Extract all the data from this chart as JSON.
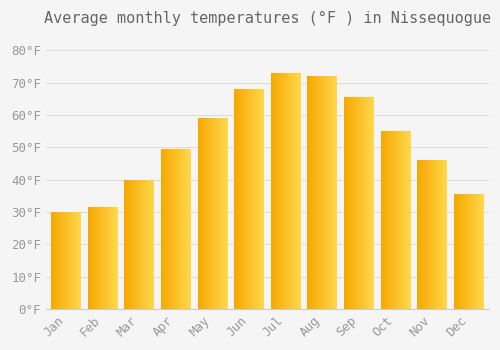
{
  "title": "Average monthly temperatures (°F ) in Nissequogue",
  "months": [
    "Jan",
    "Feb",
    "Mar",
    "Apr",
    "May",
    "Jun",
    "Jul",
    "Aug",
    "Sep",
    "Oct",
    "Nov",
    "Dec"
  ],
  "values": [
    30,
    31.5,
    40,
    49.5,
    59,
    68,
    73,
    72,
    65.5,
    55,
    46,
    35.5
  ],
  "bar_color_left": "#F5A800",
  "bar_color_right": "#FFD84D",
  "background_color": "#F5F5F5",
  "grid_color": "#DDDDDD",
  "yticks": [
    0,
    10,
    20,
    30,
    40,
    50,
    60,
    70,
    80
  ],
  "ylim": [
    0,
    85
  ],
  "title_fontsize": 11,
  "tick_fontsize": 9,
  "tick_font_color": "#999999",
  "title_font_color": "#666666",
  "bar_width": 0.82
}
